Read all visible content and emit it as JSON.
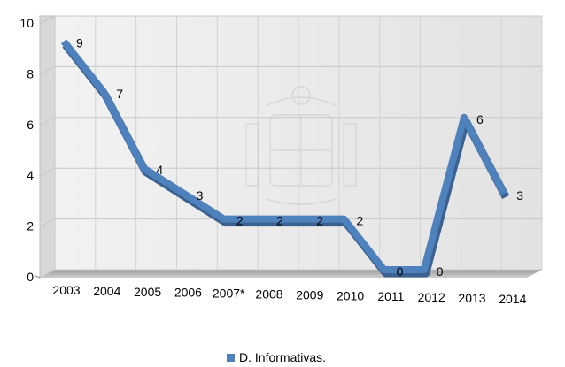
{
  "chart_data": {
    "type": "line",
    "categories": [
      "2003",
      "2004",
      "2005",
      "2006",
      "2007*",
      "2008",
      "2009",
      "2010",
      "2011",
      "2012",
      "2013",
      "2014"
    ],
    "series": [
      {
        "name": "D. Informativas.",
        "values": [
          9,
          7,
          4,
          3,
          2,
          2,
          2,
          2,
          0,
          0,
          6,
          3
        ],
        "color": "#4f81bd"
      }
    ],
    "yticks": [
      "0",
      "2",
      "4",
      "6",
      "8",
      "10"
    ],
    "ylim": [
      0,
      10
    ],
    "grid": true,
    "legend": "bottom",
    "data_labels": true,
    "watermark": "escudo (coat of arms)"
  }
}
